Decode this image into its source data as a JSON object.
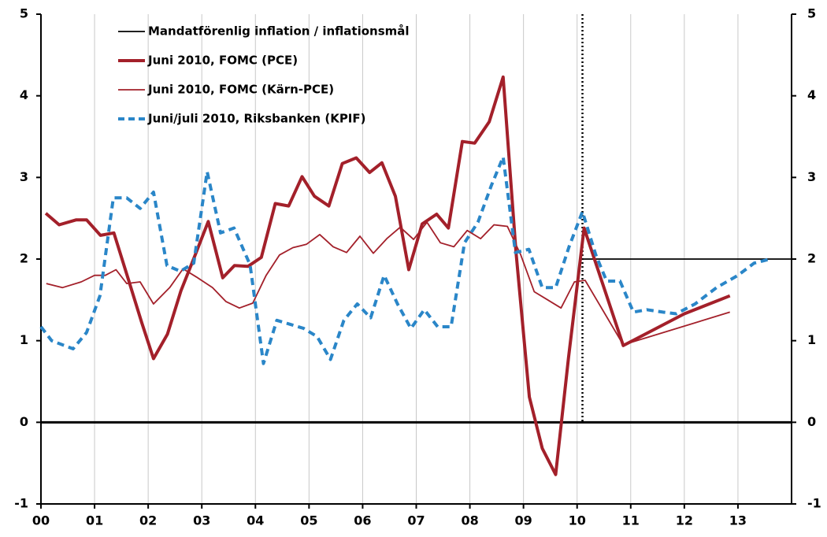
{
  "chart_data": {
    "type": "line",
    "xlim": [
      0,
      14
    ],
    "xticks": [
      {
        "value": 0,
        "label": "00"
      },
      {
        "value": 1,
        "label": "01"
      },
      {
        "value": 2,
        "label": "02"
      },
      {
        "value": 3,
        "label": "03"
      },
      {
        "value": 4,
        "label": "04"
      },
      {
        "value": 5,
        "label": "05"
      },
      {
        "value": 6,
        "label": "06"
      },
      {
        "value": 7,
        "label": "07"
      },
      {
        "value": 8,
        "label": "08"
      },
      {
        "value": 9,
        "label": "09"
      },
      {
        "value": 10,
        "label": "10"
      },
      {
        "value": 11,
        "label": "11"
      },
      {
        "value": 12,
        "label": "12"
      },
      {
        "value": 13,
        "label": "13"
      }
    ],
    "ylim": [
      -1,
      5
    ],
    "yticks": [
      -1,
      0,
      1,
      2,
      3,
      4,
      5
    ],
    "y2lim": [
      -1,
      5
    ],
    "y2ticks": [
      -1,
      0,
      1,
      2,
      3,
      4,
      5
    ],
    "grid": "x",
    "legend": "upper-left",
    "vline": 10.1,
    "series": [
      {
        "name": "Mandatförenlig inflation / inflationsmål",
        "color": "#000000",
        "style": "target",
        "x": [
          10.1,
          14
        ],
        "values": [
          2.0,
          2.0
        ]
      },
      {
        "name": "Juni 2010, FOMC (PCE)",
        "color": "#a3202a",
        "style": "thick",
        "x": [
          0.09,
          0.34,
          0.66,
          0.85,
          1.11,
          1.36,
          1.63,
          1.88,
          2.1,
          2.36,
          2.61,
          2.87,
          3.12,
          3.39,
          3.61,
          3.86,
          4.11,
          4.37,
          4.62,
          4.87,
          5.1,
          5.37,
          5.62,
          5.88,
          6.13,
          6.36,
          6.61,
          6.86,
          7.11,
          7.38,
          7.6,
          7.86,
          8.09,
          8.36,
          8.62,
          8.86,
          9.11,
          9.35,
          9.6,
          9.84,
          10.13,
          10.86,
          12.0,
          12.85
        ],
        "values": [
          2.56,
          2.42,
          2.48,
          2.48,
          2.29,
          2.32,
          1.75,
          1.22,
          0.78,
          1.08,
          1.61,
          2.04,
          2.46,
          1.77,
          1.92,
          1.91,
          2.02,
          2.68,
          2.65,
          3.01,
          2.77,
          2.65,
          3.17,
          3.24,
          3.06,
          3.18,
          2.77,
          1.87,
          2.43,
          2.55,
          2.38,
          3.44,
          3.42,
          3.68,
          4.23,
          2.09,
          0.31,
          -0.32,
          -0.64,
          0.79,
          2.38,
          0.94,
          1.33,
          1.55
        ]
      },
      {
        "name": "Juni 2010, FOMC (Kärn-PCE)",
        "color": "#a3202a",
        "style": "thin",
        "x": [
          0.1,
          0.4,
          0.75,
          1.0,
          1.2,
          1.4,
          1.6,
          1.85,
          2.1,
          2.4,
          2.65,
          2.9,
          3.2,
          3.45,
          3.7,
          3.95,
          4.2,
          4.45,
          4.7,
          4.95,
          5.2,
          5.45,
          5.7,
          5.95,
          6.2,
          6.45,
          6.7,
          6.95,
          7.2,
          7.45,
          7.7,
          7.95,
          8.2,
          8.45,
          8.7,
          8.95,
          9.2,
          9.45,
          9.7,
          9.95,
          10.15,
          10.86,
          12.85
        ],
        "values": [
          1.7,
          1.65,
          1.72,
          1.8,
          1.8,
          1.87,
          1.7,
          1.72,
          1.45,
          1.65,
          1.88,
          1.78,
          1.65,
          1.48,
          1.4,
          1.46,
          1.8,
          2.05,
          2.14,
          2.18,
          2.3,
          2.15,
          2.08,
          2.28,
          2.07,
          2.25,
          2.39,
          2.24,
          2.45,
          2.2,
          2.15,
          2.35,
          2.25,
          2.42,
          2.4,
          2.05,
          1.6,
          1.5,
          1.4,
          1.72,
          1.74,
          0.95,
          1.35
        ]
      },
      {
        "name": "Juni/juli 2010, Riksbanken (KPIF)",
        "color": "#2a86c8",
        "style": "dashed",
        "x": [
          0.0,
          0.2,
          0.4,
          0.6,
          0.85,
          1.1,
          1.35,
          1.6,
          1.85,
          2.1,
          2.35,
          2.6,
          2.85,
          3.1,
          3.35,
          3.6,
          3.9,
          4.15,
          4.4,
          4.65,
          4.9,
          5.15,
          5.4,
          5.65,
          5.9,
          6.15,
          6.4,
          6.65,
          6.9,
          7.15,
          7.4,
          7.65,
          7.9,
          8.15,
          8.4,
          8.62,
          8.85,
          9.1,
          9.35,
          9.6,
          9.85,
          10.1,
          10.35,
          10.55,
          10.8,
          11.05,
          11.3,
          11.6,
          11.85,
          12.2,
          12.6,
          13.0,
          13.3,
          13.6
        ],
        "values": [
          1.17,
          1.0,
          0.95,
          0.9,
          1.1,
          1.55,
          2.75,
          2.75,
          2.62,
          2.82,
          1.92,
          1.85,
          1.95,
          3.07,
          2.32,
          2.38,
          1.93,
          0.72,
          1.25,
          1.2,
          1.15,
          1.05,
          0.77,
          1.25,
          1.45,
          1.28,
          1.8,
          1.45,
          1.15,
          1.38,
          1.17,
          1.17,
          2.2,
          2.45,
          2.9,
          3.25,
          2.08,
          2.12,
          1.65,
          1.65,
          2.15,
          2.58,
          2.05,
          1.73,
          1.73,
          1.35,
          1.38,
          1.35,
          1.33,
          1.45,
          1.65,
          1.8,
          1.95,
          2.0
        ]
      }
    ]
  }
}
